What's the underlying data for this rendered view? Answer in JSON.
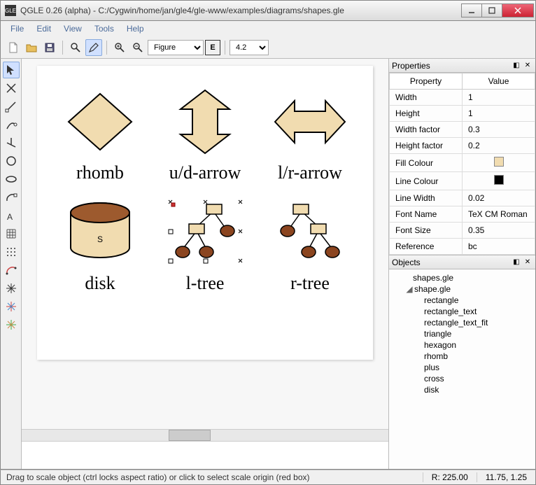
{
  "window": {
    "title": "QGLE 0.26 (alpha) - C:/Cygwin/home/jan/gle4/gle-www/examples/diagrams/shapes.gle",
    "app_icon_text": "GLE"
  },
  "menubar": [
    "File",
    "Edit",
    "View",
    "Tools",
    "Help"
  ],
  "toolbar": {
    "figure_select": "Figure",
    "e_button": "E",
    "zoom_select": "4.2"
  },
  "shapes": {
    "fill_color": "#f1dcb0",
    "stroke_color": "#000000",
    "tree_node_fill": "#f1dcb0",
    "tree_leaf_fill": "#8b4520",
    "disk_top_fill": "#9d5a2e",
    "labels": [
      "rhomb",
      "u/d-arrow",
      "l/r-arrow",
      "disk",
      "l-tree",
      "r-tree"
    ],
    "disk_letter": "S"
  },
  "properties_panel": {
    "title": "Properties",
    "col_property": "Property",
    "col_value": "Value",
    "rows": [
      {
        "k": "Width",
        "v": "1"
      },
      {
        "k": "Height",
        "v": "1"
      },
      {
        "k": "Width factor",
        "v": "0.3"
      },
      {
        "k": "Height factor",
        "v": "0.2"
      },
      {
        "k": "Fill Colour",
        "swatch": "#f1dcb0"
      },
      {
        "k": "Line Colour",
        "swatch": "#000000"
      },
      {
        "k": "Line Width",
        "v": "0.02"
      },
      {
        "k": "Font Name",
        "v": "TeX CM Roman"
      },
      {
        "k": "Font Size",
        "v": "0.35"
      },
      {
        "k": "Reference",
        "v": "bc"
      }
    ]
  },
  "objects_panel": {
    "title": "Objects",
    "items": [
      {
        "label": "shapes.gle",
        "level": 0,
        "expand": ""
      },
      {
        "label": "shape.gle",
        "level": 1,
        "expand": "◢"
      },
      {
        "label": "rectangle",
        "level": 2,
        "expand": ""
      },
      {
        "label": "rectangle_text",
        "level": 2,
        "expand": ""
      },
      {
        "label": "rectangle_text_fit",
        "level": 2,
        "expand": ""
      },
      {
        "label": "triangle",
        "level": 2,
        "expand": ""
      },
      {
        "label": "hexagon",
        "level": 2,
        "expand": ""
      },
      {
        "label": "rhomb",
        "level": 2,
        "expand": ""
      },
      {
        "label": "plus",
        "level": 2,
        "expand": ""
      },
      {
        "label": "cross",
        "level": 2,
        "expand": ""
      },
      {
        "label": "disk",
        "level": 2,
        "expand": ""
      }
    ]
  },
  "statusbar": {
    "message": "Drag to scale object (ctrl locks aspect ratio) or click to select scale origin (red box)",
    "r_value": "R:  225.00",
    "coords": "11.75, 1.25"
  }
}
